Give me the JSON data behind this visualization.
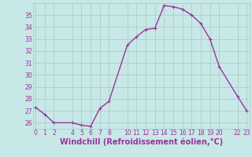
{
  "x": [
    0,
    1,
    2,
    4,
    5,
    6,
    7,
    8,
    10,
    11,
    12,
    13,
    14,
    15,
    16,
    17,
    18,
    19,
    20,
    22,
    23
  ],
  "y": [
    27.3,
    26.7,
    26.0,
    26.0,
    25.8,
    25.7,
    27.2,
    27.8,
    32.5,
    33.2,
    33.8,
    33.9,
    35.8,
    35.7,
    35.5,
    35.0,
    34.3,
    33.0,
    30.7,
    28.2,
    27.0
  ],
  "line_color": "#993399",
  "marker_color": "#993399",
  "bg_color": "#c8e8e8",
  "grid_color": "#b0d0d0",
  "xlabel": "Windchill (Refroidissement éolien,°C)",
  "xlabel_color": "#993399",
  "xticks": [
    0,
    1,
    2,
    4,
    5,
    6,
    7,
    8,
    10,
    11,
    12,
    13,
    14,
    15,
    16,
    17,
    18,
    19,
    20,
    22,
    23
  ],
  "xtick_labels": [
    "0",
    "1",
    "2",
    "4",
    "5",
    "6",
    "7",
    "8",
    "10",
    "11",
    "12",
    "13",
    "14",
    "15",
    "16",
    "17",
    "18",
    "19",
    "20",
    "22",
    "23"
  ],
  "yticks": [
    26,
    27,
    28,
    29,
    30,
    31,
    32,
    33,
    34,
    35
  ],
  "xlim": [
    -0.3,
    23.3
  ],
  "ylim": [
    25.5,
    36.0
  ],
  "tick_color": "#993399",
  "tick_fontsize": 5.5,
  "xlabel_fontsize": 7.0,
  "linewidth": 1.0,
  "markersize": 2.5
}
